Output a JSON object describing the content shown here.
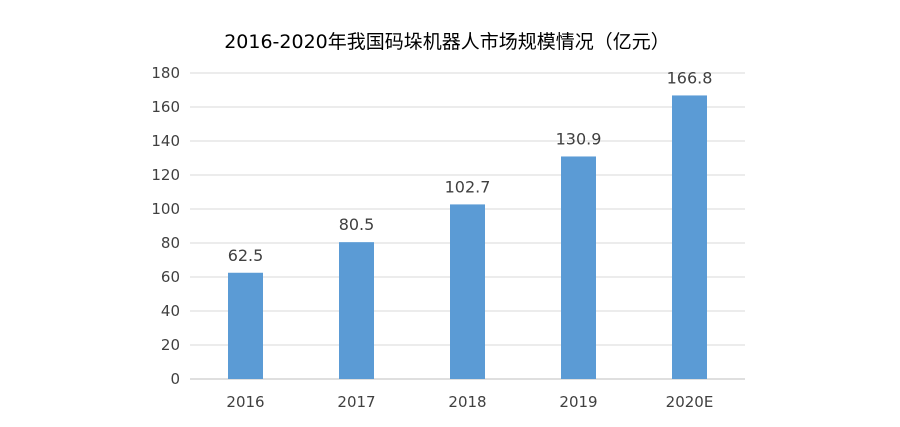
{
  "chart_data": {
    "type": "bar",
    "title": "2016-2020年我国码垛机器人市场规模情况（亿元）",
    "xlabel": "",
    "ylabel": "",
    "categories": [
      "2016",
      "2017",
      "2018",
      "2019",
      "2020E"
    ],
    "series": [
      {
        "values": [
          62.5,
          80.5,
          102.7,
          130.9,
          166.8
        ],
        "color": "#5b9bd5"
      }
    ],
    "data_labels": [
      "62.5",
      "80.5",
      "102.7",
      "130.9",
      "166.8"
    ],
    "ylim": [
      0,
      180
    ],
    "yticks": [
      0,
      20,
      40,
      60,
      80,
      100,
      120,
      140,
      160,
      180
    ],
    "grid": true,
    "legend": "none"
  }
}
